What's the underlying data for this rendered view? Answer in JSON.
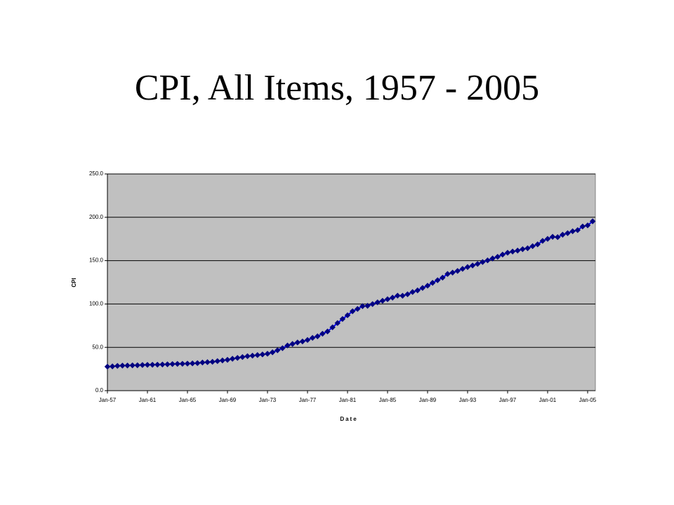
{
  "chart_data": {
    "type": "line",
    "title": "CPI, All Items, 1957 - 2005",
    "x_label": "Date",
    "y_label": "CPI",
    "categories": [
      "Jan-57",
      null,
      null,
      null,
      null,
      null,
      null,
      null,
      "Jan-61",
      null,
      null,
      null,
      null,
      null,
      null,
      null,
      "Jan-65",
      null,
      null,
      null,
      null,
      null,
      null,
      null,
      "Jan-69",
      null,
      null,
      null,
      null,
      null,
      null,
      null,
      "Jan-73",
      null,
      null,
      null,
      null,
      null,
      null,
      null,
      "Jan-77",
      null,
      null,
      null,
      null,
      null,
      null,
      null,
      "Jan-81",
      null,
      null,
      null,
      null,
      null,
      null,
      null,
      "Jan-85",
      null,
      null,
      null,
      null,
      null,
      null,
      null,
      "Jan-89",
      null,
      null,
      null,
      null,
      null,
      null,
      null,
      "Jan-93",
      null,
      null,
      null,
      null,
      null,
      null,
      null,
      "Jan-97",
      null,
      null,
      null,
      null,
      null,
      null,
      null,
      "Jan-01",
      null,
      null,
      null,
      null,
      null,
      null,
      null,
      "Jan-05",
      null
    ],
    "series": [
      {
        "name": "CPI",
        "color": "#000080",
        "values": [
          27.7,
          28.0,
          28.6,
          28.9,
          29.0,
          29.2,
          29.3,
          29.6,
          29.8,
          29.9,
          30.0,
          30.2,
          30.4,
          30.7,
          30.9,
          31.0,
          31.2,
          31.5,
          31.8,
          32.5,
          32.9,
          33.3,
          34.1,
          34.9,
          35.6,
          36.8,
          37.8,
          38.8,
          39.8,
          40.4,
          41.1,
          41.8,
          42.6,
          44.3,
          46.6,
          49.0,
          52.1,
          53.9,
          55.6,
          56.8,
          58.5,
          60.9,
          62.7,
          65.7,
          68.3,
          73.1,
          78.0,
          82.7,
          87.0,
          91.6,
          94.3,
          97.5,
          97.9,
          99.9,
          101.9,
          103.7,
          105.5,
          107.3,
          109.6,
          109.5,
          111.2,
          113.8,
          115.7,
          118.5,
          121.1,
          124.4,
          127.4,
          130.4,
          134.6,
          136.2,
          138.1,
          140.5,
          142.6,
          144.4,
          146.2,
          148.4,
          150.3,
          152.5,
          154.4,
          157.0,
          159.1,
          160.5,
          161.6,
          163.2,
          164.3,
          166.7,
          168.8,
          172.8,
          175.1,
          177.5,
          177.1,
          179.9,
          181.7,
          183.9,
          185.2,
          189.4,
          190.7,
          195.4
        ]
      }
    ],
    "ylim": [
      0,
      250
    ],
    "yticks": [
      {
        "value": 0,
        "label": "0.0"
      },
      {
        "value": 50,
        "label": "50.0"
      },
      {
        "value": 100,
        "label": "100.0"
      },
      {
        "value": 150,
        "label": "150.0"
      },
      {
        "value": 200,
        "label": "200.0"
      },
      {
        "value": 250,
        "label": "250.0"
      }
    ],
    "grid": true
  }
}
